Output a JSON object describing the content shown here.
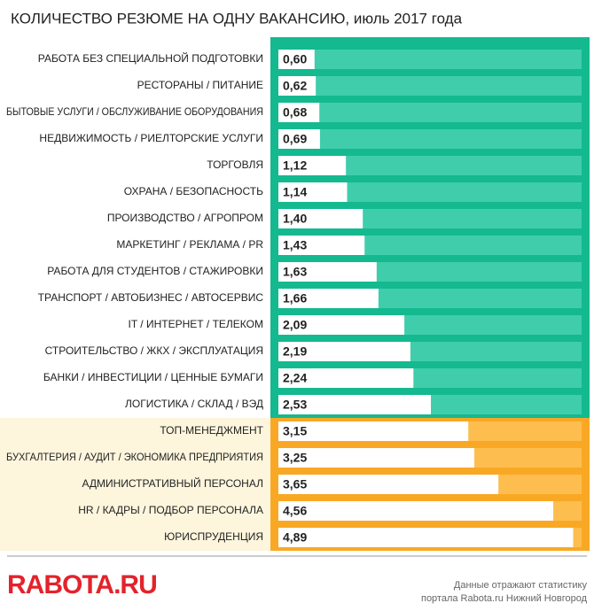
{
  "chart_data": {
    "type": "bar",
    "orientation": "horizontal",
    "title": "КОЛИЧЕСТВО РЕЗЮМЕ НА ОДНУ ВАКАНСИЮ, июль 2017 года",
    "categories": [
      "РАБОТА БЕЗ СПЕЦИАЛЬНОЙ ПОДГОТОВКИ",
      "РЕСТОРАНЫ / ПИТАНИЕ",
      "БЫТОВЫЕ УСЛУГИ / ОБСЛУЖИВАНИЕ ОБОРУДОВАНИЯ",
      "НЕДВИЖИМОСТЬ / РИЕЛТОРСКИЕ УСЛУГИ",
      "ТОРГОВЛЯ",
      "ОХРАНА / БЕЗОПАСНОСТЬ",
      "ПРОИЗВОДСТВО / АГРОПРОМ",
      "МАРКЕТИНГ / РЕКЛАМА / PR",
      "РАБОТА ДЛЯ СТУДЕНТОВ / СТАЖИРОВКИ",
      "ТРАНСПОРТ / АВТОБИЗНЕС / АВТОСЕРВИС",
      "IT / ИНТЕРНЕТ / ТЕЛЕКОМ",
      "СТРОИТЕЛЬСТВО / ЖКХ / ЭКСПЛУАТАЦИЯ",
      "БАНКИ / ИНВЕСТИЦИИ / ЦЕННЫЕ БУМАГИ",
      "ЛОГИСТИКА / СКЛАД / ВЭД",
      "ТОП-МЕНЕДЖМЕНТ",
      "БУХГАЛТЕРИЯ / АУДИТ / ЭКОНОМИКА ПРЕДПРИЯТИЯ",
      "АДМИНИСТРАТИВНЫЙ ПЕРСОНАЛ",
      "HR / КАДРЫ / ПОДБОР ПЕРСОНАЛА",
      "ЮРИСПРУДЕНЦИЯ"
    ],
    "values": [
      0.6,
      0.62,
      0.68,
      0.69,
      1.12,
      1.14,
      1.4,
      1.43,
      1.63,
      1.66,
      2.09,
      2.19,
      2.24,
      2.53,
      3.15,
      3.25,
      3.65,
      4.56,
      4.89
    ],
    "value_labels": [
      "0,60",
      "0,62",
      "0,68",
      "0,69",
      "1,12",
      "1,14",
      "1,40",
      "1,43",
      "1,63",
      "1,66",
      "2,09",
      "2,19",
      "2,24",
      "2,53",
      "3,15",
      "3,25",
      "3,65",
      "4,56",
      "4,89"
    ],
    "colors": [
      "#40cdac",
      "#40cdac",
      "#40cdac",
      "#40cdac",
      "#40cdac",
      "#40cdac",
      "#40cdac",
      "#40cdac",
      "#40cdac",
      "#40cdac",
      "#40cdac",
      "#40cdac",
      "#40cdac",
      "#40cdac",
      "#fdbe4f",
      "#fdbe4f",
      "#fdbe4f",
      "#fdbe4f",
      "#fdbe4f"
    ],
    "xlim": [
      0,
      5.03
    ]
  },
  "footer": {
    "logo": "RABOTA.RU",
    "note_line1": "Данные отражают статистику",
    "note_line2": "портала Rabota.ru Нижний Новгород"
  }
}
